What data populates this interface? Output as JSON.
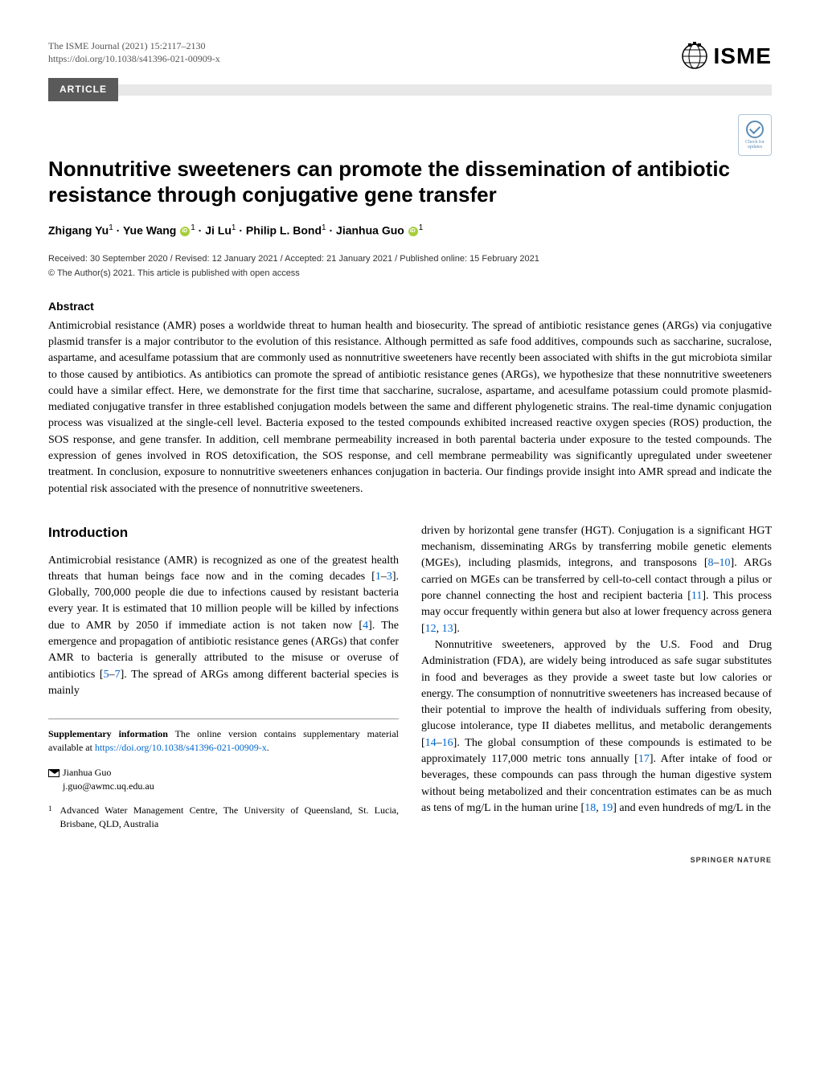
{
  "header": {
    "journal_line": "The ISME Journal (2021) 15:2117–2130",
    "doi_line": "https://doi.org/10.1038/s41396-021-00909-x",
    "logo_text": "ISME",
    "article_label": "ARTICLE",
    "check_updates": "Check for updates"
  },
  "title": "Nonnutritive sweeteners can promote the dissemination of antibiotic resistance through conjugative gene transfer",
  "authors_html": "Zhigang Yu<sup>1</sup> · Yue Wang <span class='orcid'></span><sup>1</sup> · Ji Lu<sup>1</sup> · Philip L. Bond<sup>1</sup> · Jianhua Guo <span class='orcid'></span><sup>1</sup>",
  "dates": "Received: 30 September 2020 / Revised: 12 January 2021 / Accepted: 21 January 2021 / Published online: 15 February 2021",
  "copyright": "© The Author(s) 2021. This article is published with open access",
  "abstract": {
    "heading": "Abstract",
    "text": "Antimicrobial resistance (AMR) poses a worldwide threat to human health and biosecurity. The spread of antibiotic resistance genes (ARGs) via conjugative plasmid transfer is a major contributor to the evolution of this resistance. Although permitted as safe food additives, compounds such as saccharine, sucralose, aspartame, and acesulfame potassium that are commonly used as nonnutritive sweeteners have recently been associated with shifts in the gut microbiota similar to those caused by antibiotics. As antibiotics can promote the spread of antibiotic resistance genes (ARGs), we hypothesize that these nonnutritive sweeteners could have a similar effect. Here, we demonstrate for the first time that saccharine, sucralose, aspartame, and acesulfame potassium could promote plasmid-mediated conjugative transfer in three established conjugation models between the same and different phylogenetic strains. The real-time dynamic conjugation process was visualized at the single-cell level. Bacteria exposed to the tested compounds exhibited increased reactive oxygen species (ROS) production, the SOS response, and gene transfer. In addition, cell membrane permeability increased in both parental bacteria under exposure to the tested compounds. The expression of genes involved in ROS detoxification, the SOS response, and cell membrane permeability was significantly upregulated under sweetener treatment. In conclusion, exposure to nonnutritive sweeteners enhances conjugation in bacteria. Our findings provide insight into AMR spread and indicate the potential risk associated with the presence of nonnutritive sweeteners."
  },
  "intro": {
    "heading": "Introduction",
    "col1_p1": "Antimicrobial resistance (AMR) is recognized as one of the greatest health threats that human beings face now and in the coming decades [<span class='ref-link'>1</span>–<span class='ref-link'>3</span>]. Globally, 700,000 people die due to infections caused by resistant bacteria every year. It is estimated that 10 million people will be killed by infections due to AMR by 2050 if immediate action is not taken now [<span class='ref-link'>4</span>]. The emergence and propagation of antibiotic resistance genes (ARGs) that confer AMR to bacteria is generally attributed to the misuse or overuse of antibiotics [<span class='ref-link'>5</span>–<span class='ref-link'>7</span>]. The spread of ARGs among different bacterial species is mainly",
    "col2_p1": "driven by horizontal gene transfer (HGT). Conjugation is a significant HGT mechanism, disseminating ARGs by transferring mobile genetic elements (MGEs), including plasmids, integrons, and transposons [<span class='ref-link'>8</span>–<span class='ref-link'>10</span>]. ARGs carried on MGEs can be transferred by cell-to-cell contact through a pilus or pore channel connecting the host and recipient bacteria [<span class='ref-link'>11</span>]. This process may occur frequently within genera but also at lower frequency across genera [<span class='ref-link'>12</span>, <span class='ref-link'>13</span>].",
    "col2_p2": "Nonnutritive sweeteners, approved by the U.S. Food and Drug Administration (FDA), are widely being introduced as safe sugar substitutes in food and beverages as they provide a sweet taste but low calories or energy. The consumption of nonnutritive sweeteners has increased because of their potential to improve the health of individuals suffering from obesity, glucose intolerance, type II diabetes mellitus, and metabolic derangements [<span class='ref-link'>14</span>–<span class='ref-link'>16</span>]. The global consumption of these compounds is estimated to be approximately 117,000 metric tons annually [<span class='ref-link'>17</span>]. After intake of food or beverages, these compounds can pass through the human digestive system without being metabolized and their concentration estimates can be as much as tens of mg/L in the human urine [<span class='ref-link'>18</span>, <span class='ref-link'>19</span>] and even hundreds of mg/L in the"
  },
  "supplementary": {
    "label": "Supplementary information",
    "text": " The online version contains supplementary material available at ",
    "link": "https://doi.org/10.1038/s41396-021-00909-x"
  },
  "corresp": {
    "name": "Jianhua Guo",
    "email": "j.guo@awmc.uq.edu.au"
  },
  "affiliation": {
    "num": "1",
    "text": "Advanced Water Management Centre, The University of Queensland, St. Lucia, Brisbane, QLD, Australia"
  },
  "footer": {
    "publisher": "SPRINGER NATURE"
  },
  "colors": {
    "link": "#0066cc",
    "bar_bg": "#5a5a5a",
    "bar_line": "#e8e8e8",
    "orcid": "#a6ce39",
    "check": "#5a8cb5"
  }
}
